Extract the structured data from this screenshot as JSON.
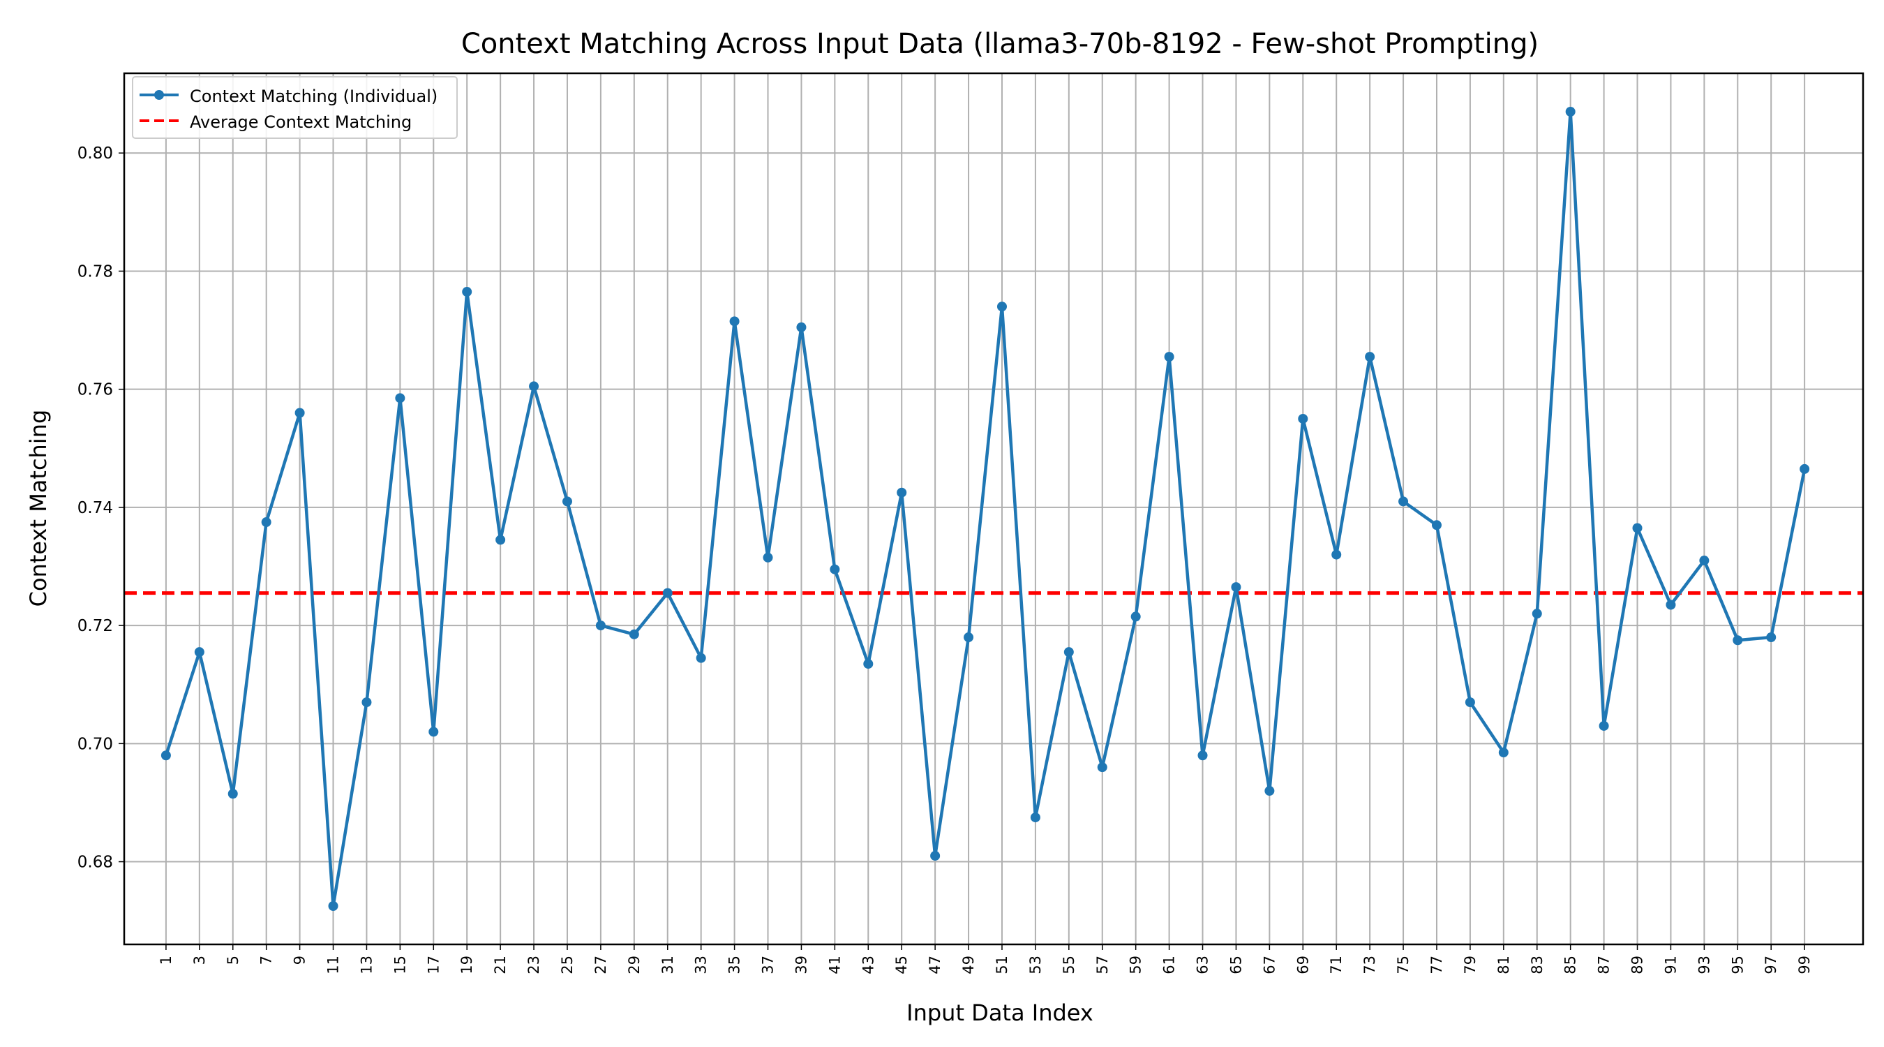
{
  "chart_data": {
    "type": "line",
    "title": "Context Matching Across Input Data (llama3-70b-8192 - Few-shot Prompting)",
    "xlabel": "Input Data Index",
    "ylabel": "Context Matching",
    "x": [
      1,
      3,
      5,
      7,
      9,
      11,
      13,
      15,
      17,
      19,
      21,
      23,
      25,
      27,
      29,
      31,
      33,
      35,
      37,
      39,
      41,
      43,
      45,
      47,
      49,
      51,
      53,
      55,
      57,
      59,
      61,
      63,
      65,
      67,
      69,
      71,
      73,
      75,
      77,
      79,
      81,
      83,
      85,
      87,
      89,
      91,
      93,
      95,
      97,
      99
    ],
    "xticks": [
      "1",
      "3",
      "5",
      "7",
      "9",
      "11",
      "13",
      "15",
      "17",
      "19",
      "21",
      "23",
      "25",
      "27",
      "29",
      "31",
      "33",
      "35",
      "37",
      "39",
      "41",
      "43",
      "45",
      "47",
      "49",
      "51",
      "53",
      "55",
      "57",
      "59",
      "61",
      "63",
      "65",
      "67",
      "69",
      "71",
      "73",
      "75",
      "77",
      "79",
      "81",
      "83",
      "85",
      "87",
      "89",
      "91",
      "93",
      "95",
      "97",
      "99"
    ],
    "xlim": [
      -1.5,
      102.5
    ],
    "yticks": [
      "0.68",
      "0.70",
      "0.72",
      "0.74",
      "0.76",
      "0.78",
      "0.80"
    ],
    "ylim": [
      0.666,
      0.8135
    ],
    "grid": true,
    "legend_position": "top-left",
    "series": [
      {
        "name": "Context Matching (Individual)",
        "color": "#1f77b4",
        "marker": "circle",
        "values": [
          0.698,
          0.7155,
          0.6915,
          0.7375,
          0.756,
          0.6725,
          0.707,
          0.7585,
          0.702,
          0.7765,
          0.7345,
          0.7605,
          0.741,
          0.72,
          0.7185,
          0.7255,
          0.7145,
          0.7715,
          0.7315,
          0.7705,
          0.7295,
          0.7135,
          0.7425,
          0.681,
          0.718,
          0.774,
          0.6875,
          0.7155,
          0.696,
          0.7215,
          0.7655,
          0.698,
          0.7265,
          0.692,
          0.755,
          0.732,
          0.7655,
          0.741,
          0.737,
          0.707,
          0.6985,
          0.722,
          0.807,
          0.703,
          0.7365,
          0.7235,
          0.731,
          0.7175,
          0.718,
          0.7465
        ]
      },
      {
        "name": "Average Context Matching",
        "color": "#ff0000",
        "style": "dashed",
        "value": 0.7255
      }
    ]
  }
}
